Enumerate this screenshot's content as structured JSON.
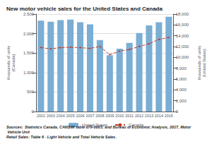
{
  "chart_data": {
    "type": "bar",
    "title": "New motor vehicle sales for the United States and Canada",
    "categories": [
      "2002",
      "2003",
      "2004",
      "2005",
      "2006",
      "2007",
      "2008",
      "2009",
      "2010",
      "2011",
      "2012",
      "2013",
      "2014",
      "2015"
    ],
    "series": [
      {
        "name": "United States",
        "type": "bar",
        "axis": "y2",
        "color": "#7aaed4",
        "values": [
          16800,
          16600,
          16900,
          17000,
          16500,
          16100,
          13200,
          10400,
          11600,
          12700,
          14500,
          15900,
          16500,
          17500
        ]
      },
      {
        "name": "Canada",
        "type": "line",
        "axis": "y",
        "color": "#c0392b",
        "line_style": "dashed",
        "marker": "circle",
        "values": [
          1640,
          1610,
          1640,
          1650,
          1640,
          1620,
          1670,
          1460,
          1550,
          1590,
          1670,
          1740,
          1850,
          1900
        ]
      }
    ],
    "ylabel": "thousands of units\n(Canada)",
    "y2label": "thousands of units\n(United States)",
    "ylim": [
      0,
      2500
    ],
    "yticks": [
      0,
      500,
      {
        "value": 1000,
        "label": "1,000"
      },
      {
        "value": 1500,
        "label": "1,500"
      },
      {
        "value": 2000,
        "label": "2,000"
      },
      {
        "value": 2500,
        "label": "2,500"
      }
    ],
    "y2lim": [
      0,
      18000
    ],
    "y2ticks": [
      0,
      {
        "value": 2000,
        "label": "2,000"
      },
      {
        "value": 4000,
        "label": "4,000"
      },
      {
        "value": 6000,
        "label": "6,000"
      },
      {
        "value": 8000,
        "label": "8,000"
      },
      {
        "value": 10000,
        "label": "10,000"
      },
      {
        "value": 12000,
        "label": "12,000"
      },
      {
        "value": 14000,
        "label": "14,000"
      },
      {
        "value": 16000,
        "label": "16,000"
      },
      {
        "value": 18000,
        "label": "18,000"
      }
    ],
    "grid": true,
    "legend": "bottom",
    "annotations": [
      "Sources:",
      " Statistics Canada, CANSIM table 079-0003; and Bureau of Economic Analysis, 2017, Motor Vehicle Unit\nRetail Sales: Table 6 - Light Vehicle and Total Vehicle Sales."
    ]
  }
}
